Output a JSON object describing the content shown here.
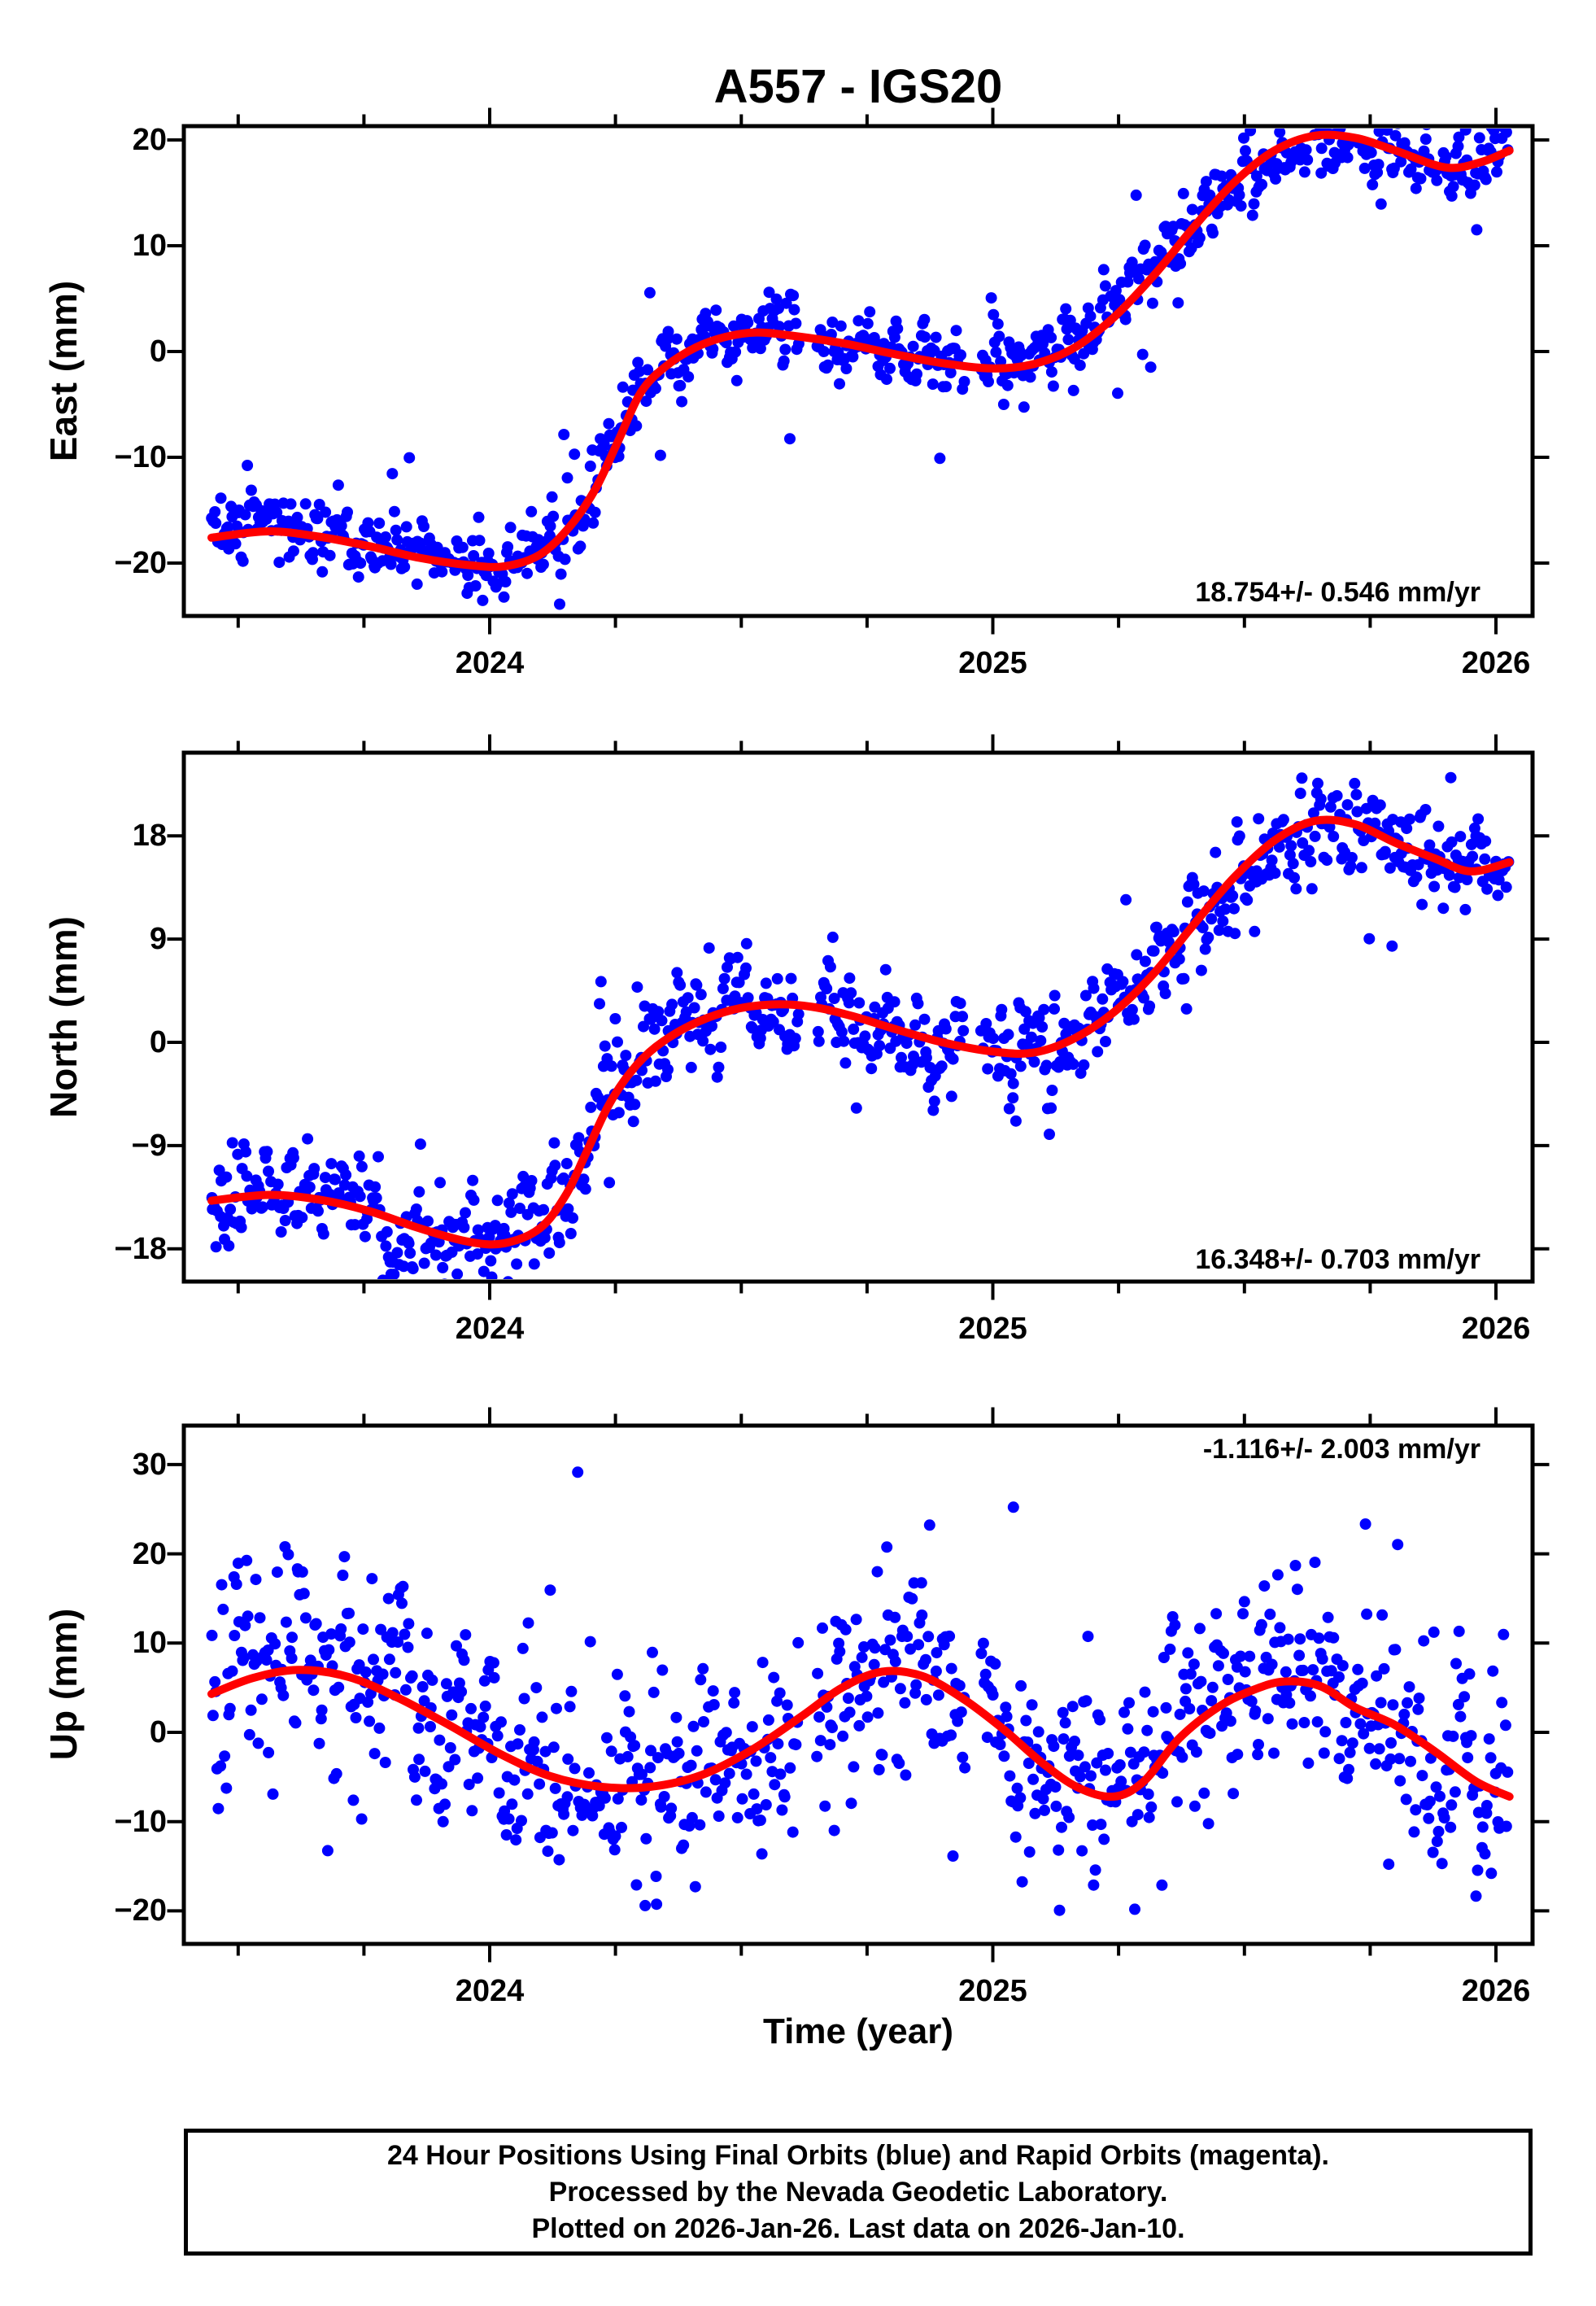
{
  "chart_data": {
    "type": "scatter",
    "title": "A557 - IGS20",
    "station": "A557",
    "reference_frame": "IGS20",
    "xlabel": "Time (year)",
    "x_range": [
      2023.392,
      2026.073
    ],
    "x_major_ticks": [
      2024,
      2025,
      2026
    ],
    "x_tick_labels": [
      "2024",
      "2025",
      "2026"
    ],
    "x_minor_interval": 0.25,
    "data_start": 2023.447,
    "data_end": 2026.027,
    "gaps": [
      [
        2024.615,
        2024.65
      ],
      [
        2024.945,
        2024.975
      ]
    ],
    "colors": {
      "points": "#0000ff",
      "rapid_points": "#ff00ff",
      "trend": "#ff0000",
      "frame": "#000000",
      "background": "#ffffff"
    },
    "point_radius_px": 7,
    "trend_stroke_px": 10,
    "panels": [
      {
        "id": "east",
        "ylabel": "East (mm)",
        "annotation": "18.754+/- 0.546 mm/yr",
        "annotation_pos": "bottom-right",
        "velocity_mm_yr": 18.754,
        "velocity_sigma_mm_yr": 0.546,
        "ylim": [
          -25.0,
          21.3
        ],
        "y_tick_values": [
          20,
          10,
          0,
          -10,
          -20
        ],
        "y_tick_labels": [
          "20",
          "10",
          "0",
          "−10",
          "−20"
        ],
        "trend": [
          [
            2023.447,
            -17.6
          ],
          [
            2023.56,
            -17.0
          ],
          [
            2023.66,
            -17.5
          ],
          [
            2023.76,
            -18.4
          ],
          [
            2023.86,
            -19.5
          ],
          [
            2023.96,
            -20.2
          ],
          [
            2024.03,
            -20.3
          ],
          [
            2024.1,
            -19.2
          ],
          [
            2024.16,
            -16.5
          ],
          [
            2024.21,
            -13.0
          ],
          [
            2024.255,
            -8.5
          ],
          [
            2024.3,
            -3.9
          ],
          [
            2024.35,
            -1.4
          ],
          [
            2024.41,
            0.4
          ],
          [
            2024.47,
            1.4
          ],
          [
            2024.53,
            1.8
          ],
          [
            2024.6,
            1.5
          ],
          [
            2024.7,
            0.8
          ],
          [
            2024.8,
            -0.2
          ],
          [
            2024.9,
            -1.1
          ],
          [
            2025.0,
            -1.6
          ],
          [
            2025.08,
            -1.2
          ],
          [
            2025.16,
            0.3
          ],
          [
            2025.24,
            3.2
          ],
          [
            2025.32,
            7.2
          ],
          [
            2025.4,
            11.8
          ],
          [
            2025.48,
            16.0
          ],
          [
            2025.56,
            19.0
          ],
          [
            2025.64,
            20.4
          ],
          [
            2025.72,
            20.2
          ],
          [
            2025.8,
            19.0
          ],
          [
            2025.9,
            17.4
          ],
          [
            2025.97,
            17.9
          ],
          [
            2026.027,
            19.0
          ]
        ],
        "scatter": {
          "n": 880,
          "sigma": 1.7,
          "ar": 0.45,
          "outlier_frac": 0.07,
          "outlier_scale": 3.0,
          "seed": 557101
        }
      },
      {
        "id": "north",
        "ylabel": "North (mm)",
        "annotation": "16.348+/- 0.703 mm/yr",
        "annotation_pos": "bottom-right",
        "velocity_mm_yr": 16.348,
        "velocity_sigma_mm_yr": 0.703,
        "ylim": [
          -20.85,
          25.25
        ],
        "y_tick_values": [
          18,
          9,
          0,
          -9,
          -18
        ],
        "y_tick_labels": [
          "18",
          "9",
          "0",
          "−9",
          "−18"
        ],
        "trend": [
          [
            2023.447,
            -13.8
          ],
          [
            2023.56,
            -13.3
          ],
          [
            2023.66,
            -13.7
          ],
          [
            2023.76,
            -14.7
          ],
          [
            2023.86,
            -16.2
          ],
          [
            2023.96,
            -17.4
          ],
          [
            2024.03,
            -17.5
          ],
          [
            2024.1,
            -16.2
          ],
          [
            2024.15,
            -13.4
          ],
          [
            2024.19,
            -9.8
          ],
          [
            2024.235,
            -5.6
          ],
          [
            2024.28,
            -2.6
          ],
          [
            2024.33,
            -0.4
          ],
          [
            2024.4,
            1.5
          ],
          [
            2024.48,
            2.8
          ],
          [
            2024.56,
            3.3
          ],
          [
            2024.64,
            3.1
          ],
          [
            2024.72,
            2.3
          ],
          [
            2024.81,
            1.1
          ],
          [
            2024.9,
            0.0
          ],
          [
            2025.0,
            -0.8
          ],
          [
            2025.08,
            -0.9
          ],
          [
            2025.16,
            0.3
          ],
          [
            2025.24,
            2.6
          ],
          [
            2025.32,
            6.0
          ],
          [
            2025.4,
            10.3
          ],
          [
            2025.48,
            14.4
          ],
          [
            2025.56,
            17.6
          ],
          [
            2025.64,
            19.3
          ],
          [
            2025.72,
            19.0
          ],
          [
            2025.8,
            17.4
          ],
          [
            2025.88,
            16.0
          ],
          [
            2025.95,
            14.9
          ],
          [
            2026.027,
            15.7
          ]
        ],
        "scatter": {
          "n": 880,
          "sigma": 2.3,
          "ar": 0.45,
          "outlier_frac": 0.06,
          "outlier_scale": 2.6,
          "seed": 557202
        }
      },
      {
        "id": "up",
        "ylabel": "Up (mm)",
        "annotation": "-1.116+/- 2.003 mm/yr",
        "annotation_pos": "top-right",
        "velocity_mm_yr": -1.116,
        "velocity_sigma_mm_yr": 2.003,
        "ylim": [
          -23.7,
          34.4
        ],
        "y_tick_values": [
          30,
          20,
          10,
          0,
          -10,
          -20
        ],
        "y_tick_labels": [
          "30",
          "20",
          "10",
          "0",
          "−10",
          "−20"
        ],
        "trend": [
          [
            2023.447,
            4.3
          ],
          [
            2023.53,
            6.1
          ],
          [
            2023.62,
            7.0
          ],
          [
            2023.72,
            6.2
          ],
          [
            2023.82,
            3.8
          ],
          [
            2023.92,
            0.8
          ],
          [
            2024.02,
            -2.4
          ],
          [
            2024.12,
            -4.9
          ],
          [
            2024.22,
            -6.1
          ],
          [
            2024.32,
            -6.1
          ],
          [
            2024.42,
            -4.8
          ],
          [
            2024.52,
            -2.0
          ],
          [
            2024.62,
            1.8
          ],
          [
            2024.7,
            5.0
          ],
          [
            2024.78,
            6.8
          ],
          [
            2024.86,
            6.3
          ],
          [
            2024.94,
            3.8
          ],
          [
            2025.02,
            0.4
          ],
          [
            2025.1,
            -3.5
          ],
          [
            2025.17,
            -6.2
          ],
          [
            2025.24,
            -7.2
          ],
          [
            2025.3,
            -5.5
          ],
          [
            2025.37,
            -0.7
          ],
          [
            2025.45,
            2.9
          ],
          [
            2025.52,
            4.8
          ],
          [
            2025.58,
            5.7
          ],
          [
            2025.65,
            5.2
          ],
          [
            2025.72,
            2.8
          ],
          [
            2025.8,
            0.8
          ],
          [
            2025.88,
            -2.2
          ],
          [
            2025.96,
            -5.5
          ],
          [
            2026.027,
            -7.2
          ]
        ],
        "scatter": {
          "n": 880,
          "sigma": 5.6,
          "ar": 0.35,
          "outlier_frac": 0.1,
          "outlier_scale": 2.1,
          "seed": 557303
        }
      }
    ]
  },
  "footer": {
    "lines": [
      "24 Hour Positions Using Final Orbits (blue) and Rapid Orbits (magenta).",
      "Processed by the Nevada Geodetic Laboratory.",
      "Plotted on 2026-Jan-26. Last data on 2026-Jan-10."
    ]
  }
}
